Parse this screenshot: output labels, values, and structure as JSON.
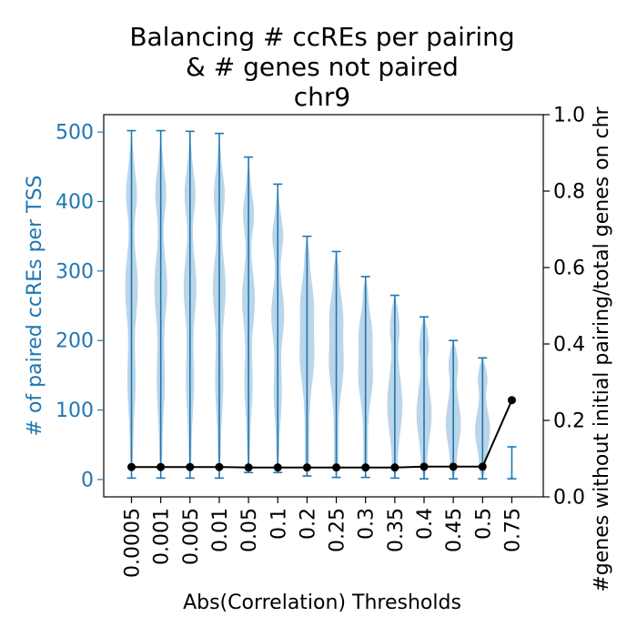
{
  "chart_data": {
    "type": "violin+line",
    "title_lines": [
      "Balancing # ccREs per pairing",
      "& # genes not paired",
      "chr9"
    ],
    "xlabel": "Abs(Correlation) Thresholds",
    "ylabel_left": "# of paired ccREs per TSS",
    "ylabel_right": "#genes without initial pairing/total genes on chr",
    "categories": [
      "0.0005",
      "0.001",
      "0.005",
      "0.01",
      "0.05",
      "0.1",
      "0.2",
      "0.25",
      "0.3",
      "0.35",
      "0.4",
      "0.45",
      "0.5",
      "0.75"
    ],
    "ylim_left": [
      -25,
      525
    ],
    "yticks_left": [
      "0",
      "100",
      "200",
      "300",
      "400",
      "500"
    ],
    "ylim_right": [
      0.0,
      1.0
    ],
    "yticks_right": [
      "0.0",
      "0.2",
      "0.4",
      "0.6",
      "0.8",
      "1.0"
    ],
    "violin_series": {
      "color": "#1f77b4",
      "min": [
        2,
        2,
        2,
        2,
        10,
        10,
        5,
        3,
        3,
        2,
        1,
        1,
        1,
        1
      ],
      "max": [
        502,
        502,
        501,
        498,
        464,
        425,
        350,
        328,
        292,
        265,
        234,
        200,
        175,
        47
      ]
    },
    "line_series": {
      "color": "#000000",
      "values": [
        0.078,
        0.078,
        0.078,
        0.078,
        0.077,
        0.077,
        0.077,
        0.077,
        0.077,
        0.077,
        0.079,
        0.079,
        0.079,
        0.253
      ]
    }
  }
}
